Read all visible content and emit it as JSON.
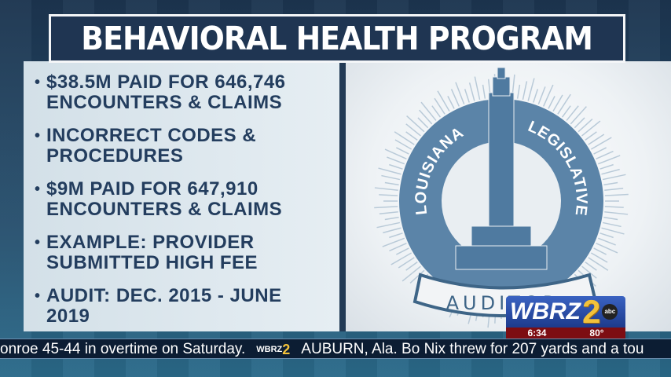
{
  "title": "BEHAVIORAL HEALTH PROGRAM",
  "bullets": [
    {
      "line1": "$38.5M PAID FOR 646,746",
      "line2": "ENCOUNTERS & CLAIMS"
    },
    {
      "line1": "INCORRECT CODES &",
      "line2": "PROCEDURES"
    },
    {
      "line1": "$9M PAID FOR 647,910",
      "line2": "ENCOUNTERS & CLAIMS"
    },
    {
      "line1": "EXAMPLE: PROVIDER",
      "line2": "SUBMITTED HIGH FEE"
    },
    {
      "line1": "AUDIT: DEC. 2015 - JUNE",
      "line2": "2019"
    }
  ],
  "seal": {
    "top_left": "LOUISIANA",
    "top_right": "LEGISLATIVE",
    "banner": "AUDITOR",
    "color": "#5b84a8"
  },
  "station": {
    "call": "WBRZ",
    "number": "2",
    "network": "abc",
    "time": "6:34",
    "temp": "80°"
  },
  "ticker": {
    "left_text": "onroe 45-44 in overtime on Saturday.",
    "logo_call": "WBRZ",
    "logo_number": "2",
    "right_text": "AUBURN, Ala. Bo Nix threw for 207 yards and a tou"
  }
}
